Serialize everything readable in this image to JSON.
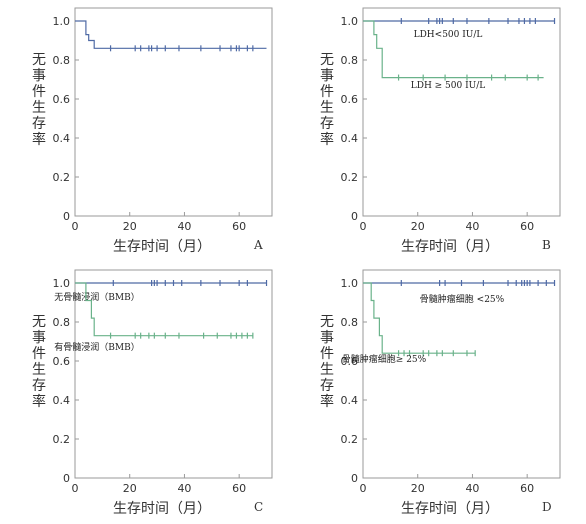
{
  "chart_data": [
    {
      "panel": "A",
      "type": "line",
      "xlabel": "生存时间（月）",
      "ylabel": "无事件生存率",
      "xlim": [
        0,
        72
      ],
      "ylim": [
        0,
        1.0
      ],
      "xticks": [
        "0",
        "20",
        "40",
        "60"
      ],
      "yticks": [
        "0",
        "0.2",
        "0.4",
        "0.6",
        "0.8",
        "1.0"
      ],
      "series": [
        {
          "color": "#4f6aa5",
          "steps": [
            [
              0,
              1.0
            ],
            [
              4,
              0.93
            ],
            [
              5,
              0.9
            ],
            [
              7,
              0.86
            ],
            [
              70,
              0.86
            ]
          ],
          "censored": [
            [
              13,
              0.86
            ],
            [
              22,
              0.86
            ],
            [
              24,
              0.86
            ],
            [
              27,
              0.86
            ],
            [
              28,
              0.86
            ],
            [
              30,
              0.86
            ],
            [
              33,
              0.86
            ],
            [
              38,
              0.86
            ],
            [
              46,
              0.86
            ],
            [
              53,
              0.86
            ],
            [
              57,
              0.86
            ],
            [
              59,
              0.86
            ],
            [
              60,
              0.86
            ],
            [
              63,
              0.86
            ],
            [
              65,
              0.86
            ]
          ]
        }
      ]
    },
    {
      "panel": "B",
      "type": "line",
      "xlabel": "生存时间（月）",
      "ylabel": "无事件生存率",
      "xlim": [
        0,
        72
      ],
      "ylim": [
        0,
        1.0
      ],
      "xticks": [
        "0",
        "20",
        "40",
        "60"
      ],
      "yticks": [
        "0",
        "0.2",
        "0.4",
        "0.6",
        "0.8",
        "1.0"
      ],
      "series": [
        {
          "name": "LDH<500 IU/L",
          "color": "#4f6aa5",
          "steps": [
            [
              0,
              1.0
            ],
            [
              70,
              1.0
            ]
          ],
          "censored": [
            [
              14,
              1.0
            ],
            [
              24,
              1.0
            ],
            [
              27,
              1.0
            ],
            [
              28,
              1.0
            ],
            [
              29,
              1.0
            ],
            [
              33,
              1.0
            ],
            [
              38,
              1.0
            ],
            [
              46,
              1.0
            ],
            [
              53,
              1.0
            ],
            [
              57,
              1.0
            ],
            [
              59,
              1.0
            ],
            [
              61,
              1.0
            ],
            [
              63,
              1.0
            ],
            [
              70,
              1.0
            ]
          ]
        },
        {
          "name": "LDH ≥ 500 IU/L",
          "color": "#6ab28a",
          "steps": [
            [
              0,
              1.0
            ],
            [
              4,
              0.93
            ],
            [
              5,
              0.86
            ],
            [
              7,
              0.71
            ],
            [
              66,
              0.71
            ]
          ],
          "censored": [
            [
              13,
              0.71
            ],
            [
              22,
              0.71
            ],
            [
              30,
              0.71
            ],
            [
              38,
              0.71
            ],
            [
              47,
              0.71
            ],
            [
              52,
              0.71
            ],
            [
              60,
              0.71
            ],
            [
              64,
              0.71
            ]
          ]
        }
      ]
    },
    {
      "panel": "C",
      "type": "line",
      "xlabel": "生存时间（月）",
      "ylabel": "无事件生存率",
      "xlim": [
        0,
        72
      ],
      "ylim": [
        0,
        1.0
      ],
      "xticks": [
        "0",
        "20",
        "40",
        "60"
      ],
      "yticks": [
        "0",
        "0.2",
        "0.4",
        "0.6",
        "0.8",
        "1.0"
      ],
      "series": [
        {
          "name": "无骨髓浸润（BMB）",
          "color": "#4f6aa5",
          "steps": [
            [
              0,
              1.0
            ],
            [
              70,
              1.0
            ]
          ],
          "censored": [
            [
              14,
              1.0
            ],
            [
              28,
              1.0
            ],
            [
              29,
              1.0
            ],
            [
              30,
              1.0
            ],
            [
              33,
              1.0
            ],
            [
              36,
              1.0
            ],
            [
              39,
              1.0
            ],
            [
              46,
              1.0
            ],
            [
              53,
              1.0
            ],
            [
              60,
              1.0
            ],
            [
              63,
              1.0
            ],
            [
              70,
              1.0
            ]
          ]
        },
        {
          "name": "有骨髓浸润（BMB）",
          "color": "#6ab28a",
          "steps": [
            [
              0,
              1.0
            ],
            [
              4,
              0.91
            ],
            [
              6,
              0.82
            ],
            [
              7,
              0.73
            ],
            [
              65,
              0.73
            ]
          ],
          "censored": [
            [
              13,
              0.73
            ],
            [
              22,
              0.73
            ],
            [
              24,
              0.73
            ],
            [
              27,
              0.73
            ],
            [
              29,
              0.73
            ],
            [
              33,
              0.73
            ],
            [
              38,
              0.73
            ],
            [
              47,
              0.73
            ],
            [
              52,
              0.73
            ],
            [
              57,
              0.73
            ],
            [
              59,
              0.73
            ],
            [
              61,
              0.73
            ],
            [
              63,
              0.73
            ],
            [
              65,
              0.73
            ]
          ]
        }
      ]
    },
    {
      "panel": "D",
      "type": "line",
      "xlabel": "生存时间（月）",
      "ylabel": "无事件生存率",
      "xlim": [
        0,
        72
      ],
      "ylim": [
        0,
        1.0
      ],
      "xticks": [
        "0",
        "20",
        "40",
        "60"
      ],
      "yticks": [
        "0",
        "0.2",
        "0.4",
        "0.6",
        "0.8",
        "1.0"
      ],
      "series": [
        {
          "name": "骨髓肿瘤细胞 <25%",
          "color": "#4f6aa5",
          "steps": [
            [
              0,
              1.0
            ],
            [
              70,
              1.0
            ]
          ],
          "censored": [
            [
              14,
              1.0
            ],
            [
              28,
              1.0
            ],
            [
              30,
              1.0
            ],
            [
              36,
              1.0
            ],
            [
              44,
              1.0
            ],
            [
              53,
              1.0
            ],
            [
              56,
              1.0
            ],
            [
              58,
              1.0
            ],
            [
              59,
              1.0
            ],
            [
              60,
              1.0
            ],
            [
              61,
              1.0
            ],
            [
              64,
              1.0
            ],
            [
              67,
              1.0
            ],
            [
              70,
              1.0
            ]
          ]
        },
        {
          "name": "骨髓肿瘤细胞≥ 25%",
          "color": "#6ab28a",
          "steps": [
            [
              0,
              1.0
            ],
            [
              3,
              0.91
            ],
            [
              4,
              0.82
            ],
            [
              6,
              0.73
            ],
            [
              7,
              0.64
            ],
            [
              41,
              0.64
            ]
          ],
          "censored": [
            [
              13,
              0.64
            ],
            [
              15,
              0.64
            ],
            [
              17,
              0.64
            ],
            [
              22,
              0.64
            ],
            [
              24,
              0.64
            ],
            [
              27,
              0.64
            ],
            [
              29,
              0.64
            ],
            [
              33,
              0.64
            ],
            [
              38,
              0.64
            ],
            [
              41,
              0.64
            ]
          ]
        }
      ]
    }
  ]
}
